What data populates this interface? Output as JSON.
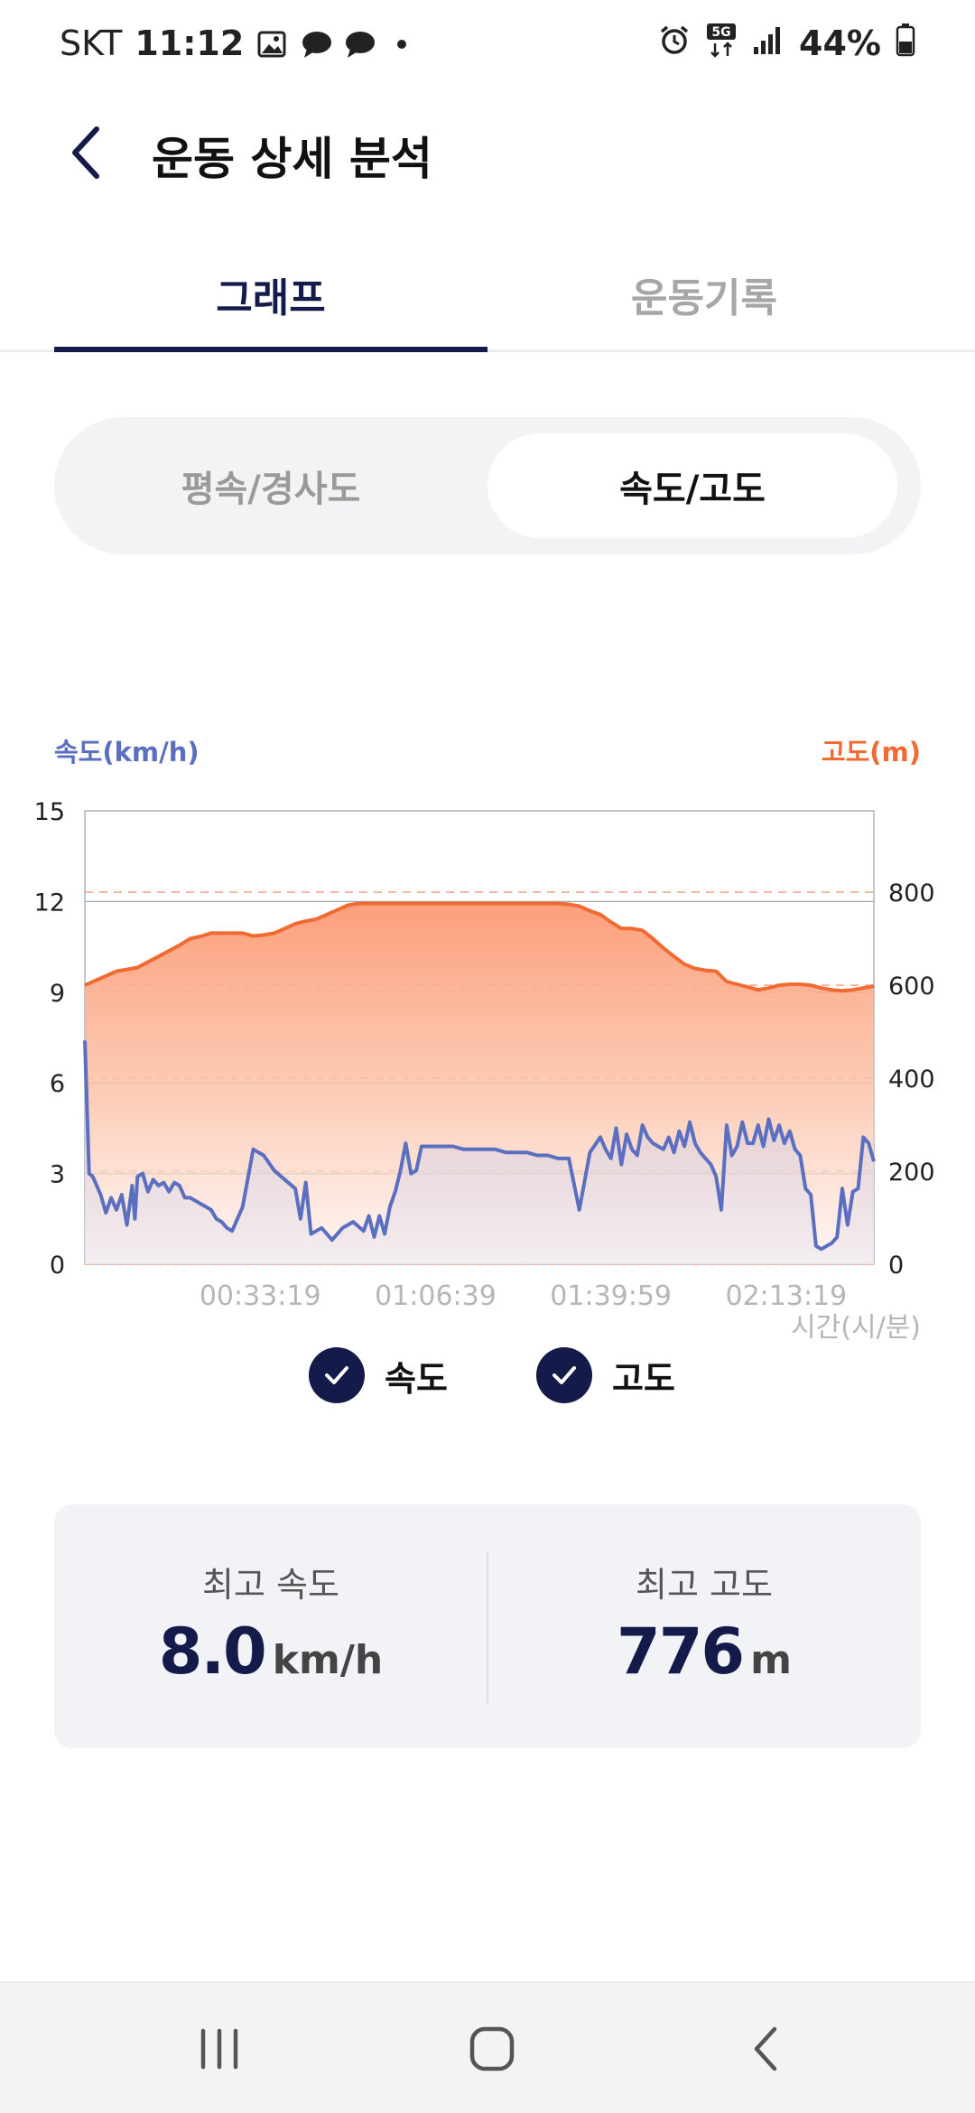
{
  "status_bar": {
    "carrier": "SKT",
    "time": "11:12",
    "battery": "44%",
    "icons_left": [
      "gallery-icon",
      "chat-bubble-icon",
      "chat-bubble-icon",
      "dot-icon"
    ],
    "icons_right": [
      "alarm-icon",
      "5g-data-icon",
      "signal-icon",
      "battery-icon"
    ]
  },
  "header": {
    "title": "운동 상세 분석"
  },
  "tabs": [
    {
      "label": "그래프",
      "active": true
    },
    {
      "label": "운동기록",
      "active": false
    }
  ],
  "segment": {
    "options": [
      "평속/경사도",
      "속도/고도"
    ],
    "selected": "속도/고도"
  },
  "chart_data": {
    "type": "line",
    "left_axis_label": "속도(km/h)",
    "right_axis_label": "고도(m)",
    "x_axis_label": "시간(시/분)",
    "x_tick_labels": [
      "00:33:19",
      "01:06:39",
      "01:39:59",
      "02:13:19"
    ],
    "left_ticks": [
      0,
      3,
      6,
      9,
      12,
      15
    ],
    "right_ticks": [
      0,
      200,
      400,
      600,
      800
    ],
    "ylim_left": [
      0,
      15
    ],
    "ylim_right": [
      0,
      975
    ],
    "x_range_minutes": [
      0,
      150
    ],
    "grid": true,
    "colors": {
      "speed": "#5a6fc0",
      "altitude": "#f06a32"
    },
    "series": [
      {
        "name": "속도",
        "axis": "left",
        "x": [
          0,
          0.8,
          1.5,
          3,
          4,
          5,
          6,
          7,
          8,
          9,
          9.5,
          10,
          11,
          12,
          13,
          14,
          15,
          16,
          17,
          18,
          19,
          20,
          21,
          22,
          23,
          24,
          25,
          26,
          27,
          28,
          30,
          32,
          34,
          36,
          38,
          40,
          41,
          42,
          43,
          45,
          47,
          49,
          51,
          53,
          54,
          55,
          56,
          57,
          58,
          59,
          60,
          61,
          62,
          63,
          64,
          65,
          66,
          67,
          68,
          70,
          72,
          74,
          76,
          78,
          80,
          82,
          84,
          86,
          88,
          90,
          92,
          94,
          96,
          98,
          99,
          100,
          101,
          102,
          103,
          104,
          105,
          106,
          107,
          108,
          109,
          110,
          111,
          112,
          113,
          114,
          115,
          116,
          117,
          118,
          119,
          120,
          121,
          122,
          123,
          124,
          125,
          126,
          127,
          128,
          129,
          130,
          131,
          132,
          133,
          134,
          135,
          136,
          137,
          138,
          139,
          140,
          141,
          142,
          143,
          144,
          145,
          146,
          147,
          148,
          149,
          150
        ],
        "values": [
          7.4,
          3.0,
          2.9,
          2.3,
          1.7,
          2.2,
          1.8,
          2.3,
          1.3,
          2.6,
          1.5,
          2.9,
          3.0,
          2.4,
          2.8,
          2.6,
          2.7,
          2.4,
          2.7,
          2.6,
          2.2,
          2.2,
          2.1,
          2.0,
          1.9,
          1.8,
          1.5,
          1.4,
          1.2,
          1.1,
          1.9,
          3.8,
          3.6,
          3.1,
          2.8,
          2.5,
          1.5,
          2.7,
          1.0,
          1.2,
          0.8,
          1.2,
          1.4,
          1.1,
          1.6,
          0.9,
          1.6,
          1.0,
          1.9,
          2.4,
          3.1,
          4.0,
          3.0,
          3.1,
          3.9,
          3.9,
          3.9,
          3.9,
          3.9,
          3.9,
          3.8,
          3.8,
          3.8,
          3.8,
          3.7,
          3.7,
          3.7,
          3.6,
          3.6,
          3.5,
          3.5,
          1.8,
          3.7,
          4.2,
          3.8,
          3.5,
          4.5,
          3.3,
          4.3,
          3.8,
          3.6,
          4.6,
          4.2,
          4.0,
          3.9,
          3.8,
          4.2,
          3.7,
          4.4,
          3.9,
          4.7,
          4.0,
          3.7,
          3.5,
          3.3,
          2.9,
          1.8,
          4.6,
          3.6,
          3.9,
          4.7,
          4.0,
          4.0,
          4.6,
          3.9,
          4.8,
          4.1,
          4.6,
          4.0,
          4.4,
          3.8,
          3.6,
          2.5,
          2.3,
          0.6,
          0.5,
          0.6,
          0.7,
          0.9,
          2.5,
          1.3,
          2.4,
          2.5,
          4.2,
          4.0,
          3.4
        ]
      },
      {
        "name": "고도",
        "axis": "right",
        "x": [
          0,
          2,
          4,
          6,
          8,
          10,
          12,
          14,
          16,
          18,
          20,
          22,
          24,
          26,
          28,
          30,
          32,
          34,
          36,
          38,
          40,
          42,
          44,
          46,
          48,
          50,
          52,
          54,
          56,
          58,
          60,
          62,
          64,
          66,
          68,
          70,
          72,
          74,
          76,
          78,
          80,
          82,
          84,
          86,
          88,
          90,
          92,
          94,
          96,
          98,
          100,
          102,
          104,
          106,
          108,
          110,
          112,
          114,
          116,
          118,
          120,
          122,
          124,
          126,
          128,
          130,
          132,
          134,
          136,
          138,
          140,
          142,
          144,
          146,
          148,
          150
        ],
        "values": [
          600,
          610,
          620,
          630,
          634,
          638,
          650,
          662,
          674,
          686,
          700,
          705,
          712,
          712,
          712,
          712,
          706,
          708,
          712,
          722,
          732,
          738,
          742,
          752,
          762,
          772,
          776,
          776,
          776,
          776,
          776,
          776,
          776,
          776,
          776,
          776,
          776,
          776,
          776,
          776,
          776,
          776,
          776,
          776,
          776,
          776,
          774,
          770,
          760,
          752,
          736,
          722,
          722,
          718,
          700,
          680,
          662,
          645,
          636,
          632,
          630,
          608,
          602,
          596,
          590,
          594,
          600,
          602,
          602,
          600,
          594,
          590,
          588,
          590,
          594,
          598
        ]
      }
    ]
  },
  "legend": [
    {
      "label": "속도",
      "checked": true
    },
    {
      "label": "고도",
      "checked": true
    }
  ],
  "stats": {
    "max_speed": {
      "label": "최고 속도",
      "value": "8.0",
      "unit": "km/h"
    },
    "max_altitude": {
      "label": "최고 고도",
      "value": "776",
      "unit": "m"
    }
  },
  "nav_bar": {
    "buttons": [
      "recents-icon",
      "home-icon",
      "back-icon"
    ]
  }
}
